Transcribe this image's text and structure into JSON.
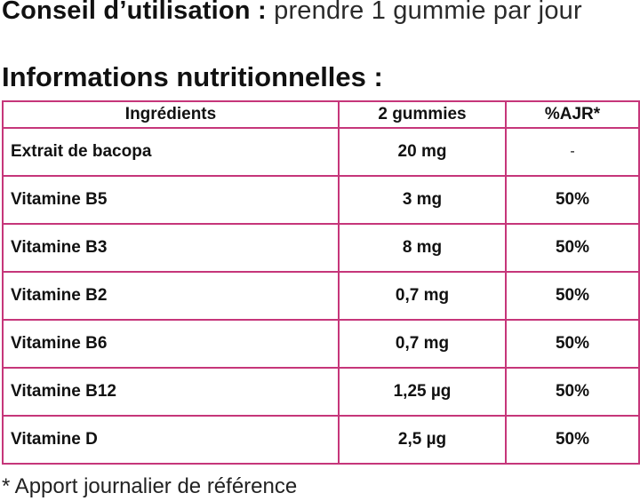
{
  "usage": {
    "label": "Conseil d’utilisation :",
    "value": "prendre 1 gummie par jour"
  },
  "section_title": "Informations nutritionnelles :",
  "table": {
    "headers": [
      "Ingrédients",
      "2 gummies",
      "%AJR*"
    ],
    "rows": [
      [
        "Extrait de bacopa",
        "20 mg",
        "-"
      ],
      [
        "Vitamine B5",
        "3 mg",
        "50%"
      ],
      [
        "Vitamine B3",
        "8 mg",
        "50%"
      ],
      [
        "Vitamine B2",
        "0,7 mg",
        "50%"
      ],
      [
        "Vitamine B6",
        "0,7 mg",
        "50%"
      ],
      [
        "Vitamine B12",
        "1,25 µg",
        "50%"
      ],
      [
        "Vitamine D",
        "2,5 µg",
        "50%"
      ]
    ]
  },
  "footnote": "* Apport journalier de référence",
  "colors": {
    "table_border": "#c6367a",
    "text": "#111111"
  }
}
